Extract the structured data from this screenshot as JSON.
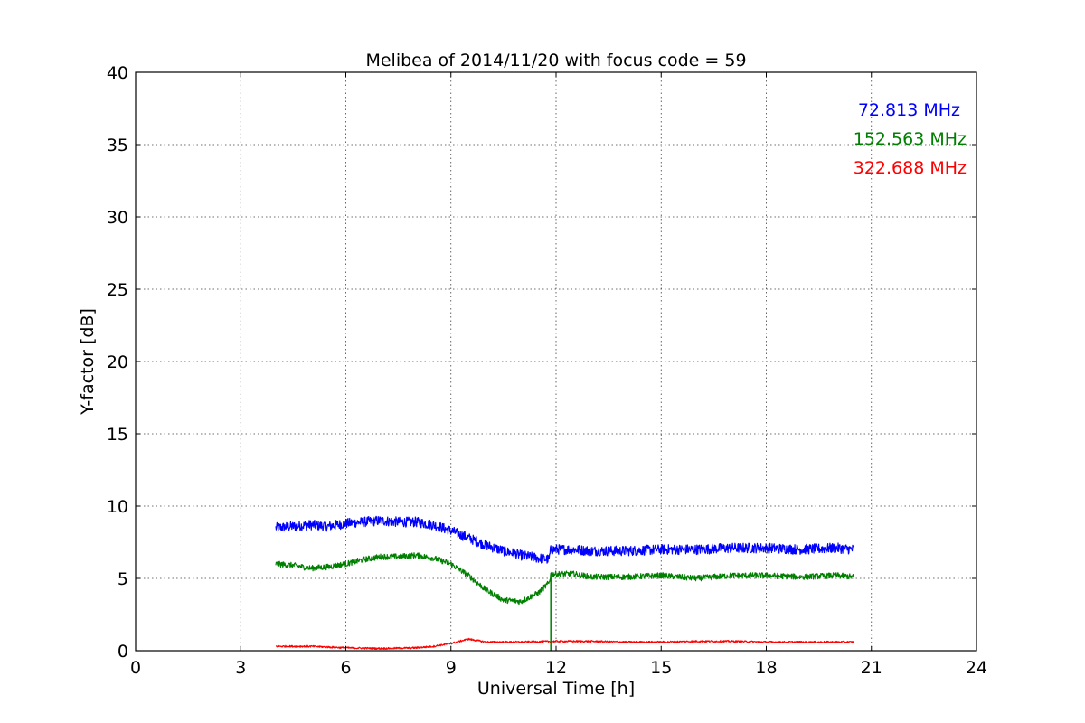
{
  "chart_data": {
    "type": "line",
    "title": "Melibea of 2014/11/20 with focus code = 59",
    "xlabel": "Universal Time [h]",
    "ylabel": "Y-factor [dB]",
    "xlim": [
      0,
      24
    ],
    "ylim": [
      0,
      40
    ],
    "x_ticks": [
      0,
      3,
      6,
      9,
      12,
      15,
      18,
      21,
      24
    ],
    "y_ticks": [
      0,
      5,
      10,
      15,
      20,
      25,
      30,
      35,
      40
    ],
    "grid": true,
    "legend_position": "top-right",
    "series": [
      {
        "name": "72.813 MHz",
        "color": "#0000ff",
        "noise": 0.35,
        "x": [
          4.0,
          4.5,
          5.0,
          5.5,
          6.0,
          6.5,
          7.0,
          7.5,
          8.0,
          8.5,
          9.0,
          9.5,
          10.0,
          10.5,
          11.0,
          11.5,
          11.8,
          11.85,
          12.5,
          13.0,
          14.0,
          15.0,
          16.0,
          17.0,
          18.0,
          19.0,
          20.0,
          20.5
        ],
        "y": [
          8.5,
          8.6,
          8.7,
          8.6,
          8.8,
          8.9,
          9.0,
          8.9,
          8.9,
          8.7,
          8.3,
          7.8,
          7.3,
          6.9,
          6.6,
          6.4,
          6.3,
          7.0,
          7.0,
          6.9,
          6.9,
          7.0,
          7.0,
          7.1,
          7.1,
          7.0,
          7.1,
          7.0
        ]
      },
      {
        "name": "152.563 MHz",
        "color": "#008000",
        "noise": 0.2,
        "x": [
          4.0,
          4.5,
          5.0,
          5.5,
          6.0,
          6.5,
          7.0,
          7.5,
          8.0,
          8.5,
          9.0,
          9.5,
          10.0,
          10.5,
          11.0,
          11.5,
          11.8,
          11.85,
          12.5,
          13.0,
          14.0,
          15.0,
          16.0,
          17.0,
          18.0,
          19.0,
          20.0,
          20.5
        ],
        "y": [
          6.0,
          5.9,
          5.7,
          5.8,
          6.0,
          6.3,
          6.5,
          6.5,
          6.6,
          6.4,
          6.0,
          5.2,
          4.2,
          3.5,
          3.4,
          4.0,
          4.7,
          5.3,
          5.3,
          5.1,
          5.1,
          5.2,
          5.0,
          5.2,
          5.2,
          5.1,
          5.2,
          5.1
        ]
      },
      {
        "name": "322.688 MHz",
        "color": "#ff0000",
        "noise": 0.06,
        "x": [
          4.0,
          5.0,
          6.0,
          7.0,
          8.0,
          8.5,
          9.0,
          9.5,
          10.0,
          11.0,
          12.0,
          13.0,
          14.0,
          15.0,
          16.0,
          17.0,
          18.0,
          19.0,
          20.0,
          20.5
        ],
        "y": [
          0.3,
          0.3,
          0.2,
          0.15,
          0.2,
          0.3,
          0.5,
          0.8,
          0.6,
          0.6,
          0.65,
          0.65,
          0.6,
          0.6,
          0.65,
          0.65,
          0.6,
          0.6,
          0.6,
          0.6
        ]
      }
    ],
    "spike": {
      "series": "152.563 MHz",
      "x": 11.85,
      "y_from": 5.3,
      "y_to": 0
    }
  }
}
